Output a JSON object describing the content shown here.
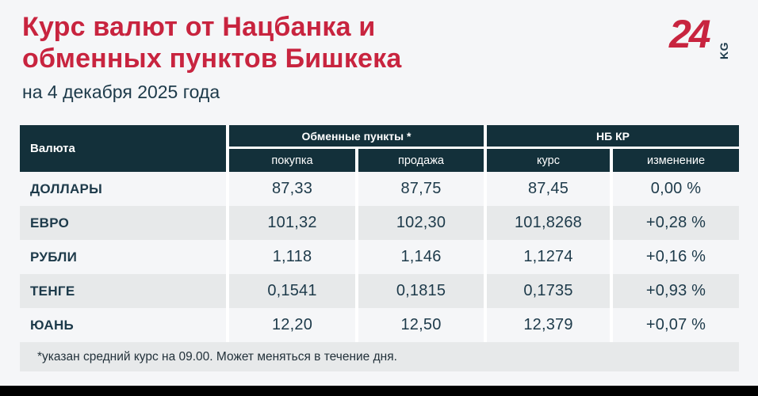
{
  "page": {
    "background": "#f5f6f8",
    "accent_red": "#c8243f",
    "navy": "#1d3a4a",
    "header_bg": "#13303a",
    "stripe_gray": "#e7e9ea"
  },
  "header": {
    "title_line1": "Курс валют от Нацбанка и",
    "title_line2": "обменных пунктов Бишкека",
    "subtitle": "на 4 декабря 2025 года",
    "logo": {
      "number": "24",
      "suffix": "KG"
    }
  },
  "table": {
    "col_currency": "Валюта",
    "groups": [
      {
        "label": "Обменные пункты *",
        "cols": [
          "покупка",
          "продажа"
        ]
      },
      {
        "label": "НБ КР",
        "cols": [
          "курс",
          "изменение"
        ]
      }
    ],
    "rows": [
      {
        "currency": "ДОЛЛАРЫ",
        "buy": "87,33",
        "sell": "87,75",
        "rate": "87,45",
        "change": "0,00 %"
      },
      {
        "currency": "ЕВРО",
        "buy": "101,32",
        "sell": "102,30",
        "rate": "101,8268",
        "change": "+0,28 %"
      },
      {
        "currency": "РУБЛИ",
        "buy": "1,118",
        "sell": "1,146",
        "rate": "1,1274",
        "change": "+0,16 %"
      },
      {
        "currency": "ТЕНГЕ",
        "buy": "0,1541",
        "sell": "0,1815",
        "rate": "0,1735",
        "change": "+0,93 %"
      },
      {
        "currency": "ЮАНЬ",
        "buy": "12,20",
        "sell": "12,50",
        "rate": "12,379",
        "change": "+0,07 %"
      }
    ],
    "footnote": "*указан средний курс на 09.00. Может меняться в течение дня."
  },
  "chart_data": {
    "type": "table",
    "title": "Курс валют от Нацбанка и обменных пунктов Бишкека",
    "subtitle": "на 4 декабря 2025 года",
    "column_groups": [
      "Обменные пункты *",
      "НБ КР"
    ],
    "columns": [
      "Валюта",
      "покупка",
      "продажа",
      "курс",
      "изменение"
    ],
    "rows": [
      [
        "ДОЛЛАРЫ",
        "87,33",
        "87,75",
        "87,45",
        "0,00 %"
      ],
      [
        "ЕВРО",
        "101,32",
        "102,30",
        "101,8268",
        "+0,28 %"
      ],
      [
        "РУБЛИ",
        "1,118",
        "1,146",
        "1,1274",
        "+0,16 %"
      ],
      [
        "ТЕНГЕ",
        "0,1541",
        "0,1815",
        "0,1735",
        "+0,93 %"
      ],
      [
        "ЮАНЬ",
        "12,20",
        "12,50",
        "12,379",
        "+0,07 %"
      ]
    ],
    "footnote": "*указан средний курс на 09.00. Может меняться в течение дня."
  }
}
